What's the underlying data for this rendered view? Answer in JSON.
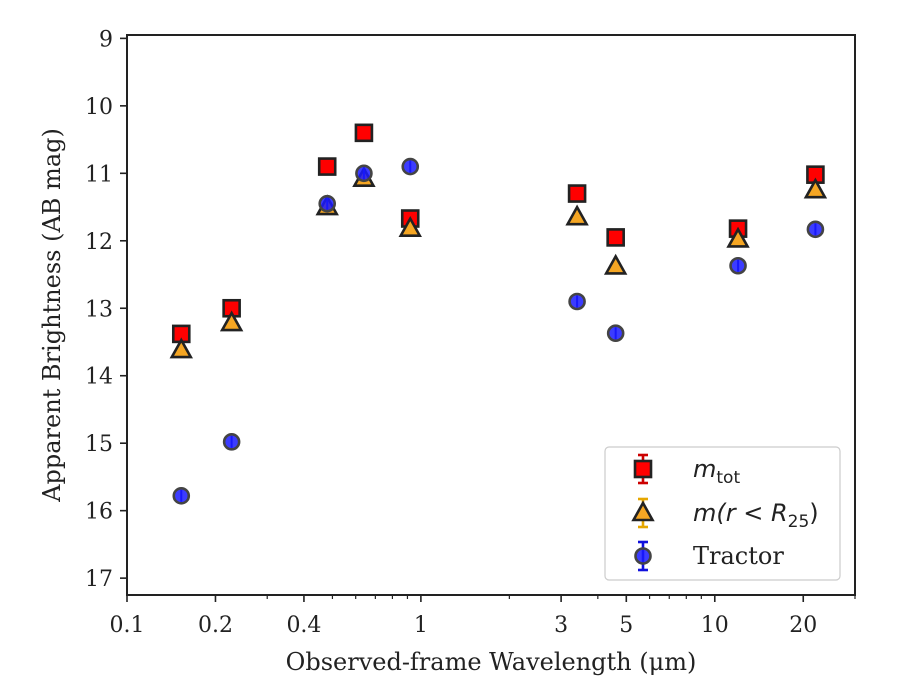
{
  "chart_data": {
    "type": "scatter",
    "xlabel": "Observed-frame Wavelength (μm)",
    "ylabel": "Apparent Brightness (AB mag)",
    "xscale": "log",
    "xlim": [
      0.1,
      30
    ],
    "ylim": [
      17.25,
      8.95
    ],
    "y_inverted": true,
    "x_ticks": [
      0.1,
      0.2,
      0.4,
      1,
      3,
      5,
      10,
      20
    ],
    "x_tick_labels": [
      "0.1",
      "0.2",
      "0.4",
      "1",
      "3",
      "5",
      "10",
      "20"
    ],
    "y_ticks": [
      9,
      10,
      11,
      12,
      13,
      14,
      15,
      16,
      17
    ],
    "y_tick_labels": [
      "9",
      "10",
      "11",
      "12",
      "13",
      "14",
      "15",
      "16",
      "17"
    ],
    "grid": false,
    "legend_position": "bottom-right",
    "legend": {
      "mtot_base": "m",
      "mtot_sub": "tot",
      "mr_prefix": "m(r < R",
      "mr_sub": "25",
      "mr_suffix": ")",
      "tractor": "Tractor"
    },
    "series": [
      {
        "key": "mtot",
        "marker": "square",
        "color": "#ff0000",
        "error_color": "#cc0000",
        "x": [
          0.153,
          0.227,
          0.48,
          0.64,
          0.92,
          3.4,
          4.6,
          12.0,
          22.0
        ],
        "y": [
          13.38,
          13.0,
          10.9,
          10.4,
          11.67,
          11.3,
          11.95,
          11.82,
          11.02
        ]
      },
      {
        "key": "mr25",
        "marker": "triangle",
        "color": "#f5a623",
        "error_color": "#e6a700",
        "x": [
          0.153,
          0.227,
          0.48,
          0.64,
          0.92,
          3.4,
          4.6,
          12.0,
          22.0
        ],
        "y": [
          13.62,
          13.22,
          11.5,
          11.08,
          11.82,
          11.65,
          12.38,
          11.98,
          11.25
        ]
      },
      {
        "key": "tractor",
        "marker": "circle",
        "color": "#1a1aff",
        "error_color": "#1010dd",
        "x": [
          0.153,
          0.227,
          0.48,
          0.64,
          0.92,
          3.4,
          4.6,
          12.0,
          22.0
        ],
        "y": [
          15.78,
          14.98,
          11.45,
          11.0,
          10.9,
          12.9,
          13.37,
          12.37,
          11.83
        ]
      }
    ]
  }
}
